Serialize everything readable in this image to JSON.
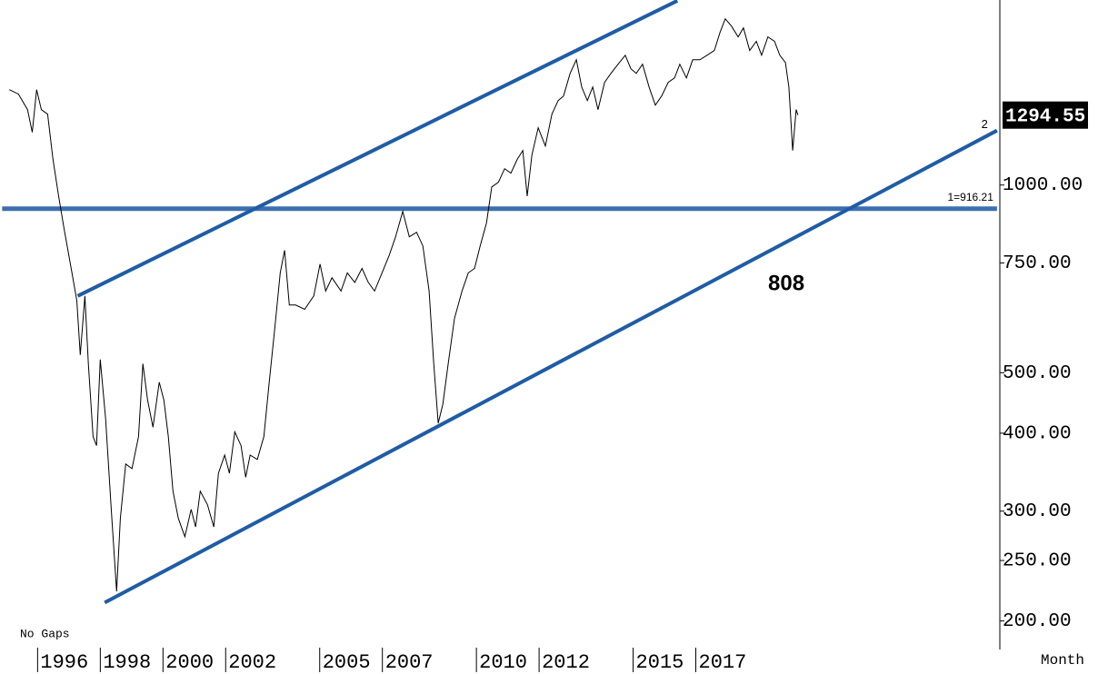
{
  "chart_data": {
    "type": "line",
    "log_scale": true,
    "x_label": "Month",
    "note": "No Gaps",
    "annotation": "808",
    "xlim": [
      1994.8,
      2026.7
    ],
    "xticks": [
      1996,
      1998,
      2000,
      2002,
      2005,
      2007,
      2010,
      2012,
      2015,
      2017
    ],
    "ylim": [
      180,
      1980
    ],
    "yticks": [
      {
        "value": 200,
        "label": "200.00"
      },
      {
        "value": 250,
        "label": "250.00"
      },
      {
        "value": 300,
        "label": "300.00"
      },
      {
        "value": 400,
        "label": "400.00"
      },
      {
        "value": 500,
        "label": "500.00"
      },
      {
        "value": 750,
        "label": "750.00"
      },
      {
        "value": 1000,
        "label": "1000.00"
      }
    ],
    "series": [
      {
        "color": "#000000",
        "x": [
          1995.1,
          1995.39,
          1995.68,
          1995.83,
          1995.97,
          1996.12,
          1996.32,
          1996.49,
          1996.67,
          1996.84,
          1997.07,
          1997.25,
          1997.36,
          1997.51,
          1997.62,
          1997.77,
          1997.88,
          1998.0,
          1998.17,
          1998.35,
          1998.52,
          1998.64,
          1998.81,
          1999.01,
          1999.22,
          1999.36,
          1999.51,
          1999.68,
          1999.88,
          2000.03,
          2000.17,
          2000.32,
          2000.49,
          2000.7,
          2000.9,
          2001.04,
          2001.19,
          2001.42,
          2001.62,
          2001.77,
          2001.97,
          2002.12,
          2002.29,
          2002.49,
          2002.64,
          2002.78,
          2003.01,
          2003.22,
          2003.39,
          2003.57,
          2003.74,
          2003.88,
          2004.03,
          2004.23,
          2004.52,
          2004.81,
          2005.01,
          2005.19,
          2005.39,
          2005.68,
          2005.88,
          2006.12,
          2006.35,
          2006.55,
          2006.75,
          2006.99,
          2007.22,
          2007.42,
          2007.65,
          2007.86,
          2008.09,
          2008.29,
          2008.49,
          2008.64,
          2008.78,
          2008.93,
          2009.1,
          2009.3,
          2009.54,
          2009.74,
          2009.94,
          2010.12,
          2010.32,
          2010.49,
          2010.7,
          2010.9,
          2011.1,
          2011.3,
          2011.48,
          2011.62,
          2011.77,
          2011.97,
          2012.2,
          2012.41,
          2012.61,
          2012.78,
          2012.99,
          2013.19,
          2013.36,
          2013.54,
          2013.71,
          2013.88,
          2014.09,
          2014.29,
          2014.52,
          2014.75,
          2014.93,
          2015.1,
          2015.3,
          2015.51,
          2015.71,
          2015.91,
          2016.12,
          2016.32,
          2016.49,
          2016.7,
          2016.9,
          2017.13,
          2017.36,
          2017.59,
          2017.77,
          2017.94,
          2018.14,
          2018.35,
          2018.52,
          2018.72,
          2018.93,
          2019.1,
          2019.3,
          2019.51,
          2019.68,
          2019.86,
          2019.97,
          2020.09,
          2020.2,
          2020.26
        ],
        "values": [
          1422,
          1399,
          1321,
          1215,
          1422,
          1321,
          1299,
          1099,
          960,
          854,
          735,
          653,
          534,
          664,
          517,
          395,
          382,
          525,
          422,
          302,
          223,
          292,
          357,
          351,
          395,
          517,
          452,
          409,
          483,
          452,
          395,
          323,
          292,
          273,
          302,
          283,
          323,
          307,
          283,
          345,
          369,
          345,
          402,
          382,
          340,
          369,
          363,
          395,
          483,
          591,
          723,
          786,
          642,
          642,
          632,
          664,
          747,
          676,
          710,
          676,
          723,
          698,
          735,
          698,
          676,
          723,
          772,
          826,
          907,
          826,
          840,
          799,
          676,
          517,
          415,
          445,
          517,
          611,
          676,
          723,
          735,
          799,
          869,
          993,
          1010,
          1062,
          1045,
          1099,
          1136,
          960,
          1117,
          1235,
          1155,
          1299,
          1366,
          1389,
          1510,
          1588,
          1436,
          1366,
          1436,
          1321,
          1461,
          1510,
          1562,
          1615,
          1536,
          1510,
          1562,
          1436,
          1343,
          1389,
          1461,
          1485,
          1562,
          1485,
          1588,
          1588,
          1615,
          1643,
          1756,
          1847,
          1798,
          1728,
          1786,
          1643,
          1700,
          1615,
          1728,
          1700,
          1615,
          1572,
          1436,
          1136,
          1321,
          1294.55
        ]
      }
    ],
    "trendlines": [
      {
        "color": "#1f5ca6",
        "x": [
          1997.28,
          2016.41
        ],
        "values": [
          664,
          1975
        ]
      },
      {
        "color": "#1f5ca6",
        "x": [
          1998.14,
          2026.61
        ],
        "values": [
          214,
          1223
        ],
        "label": "2"
      }
    ],
    "level": {
      "value": 916.21,
      "label": "1=916.21",
      "color": "#3d6faf",
      "x": [
        1995.1,
        2026.61
      ]
    }
  }
}
